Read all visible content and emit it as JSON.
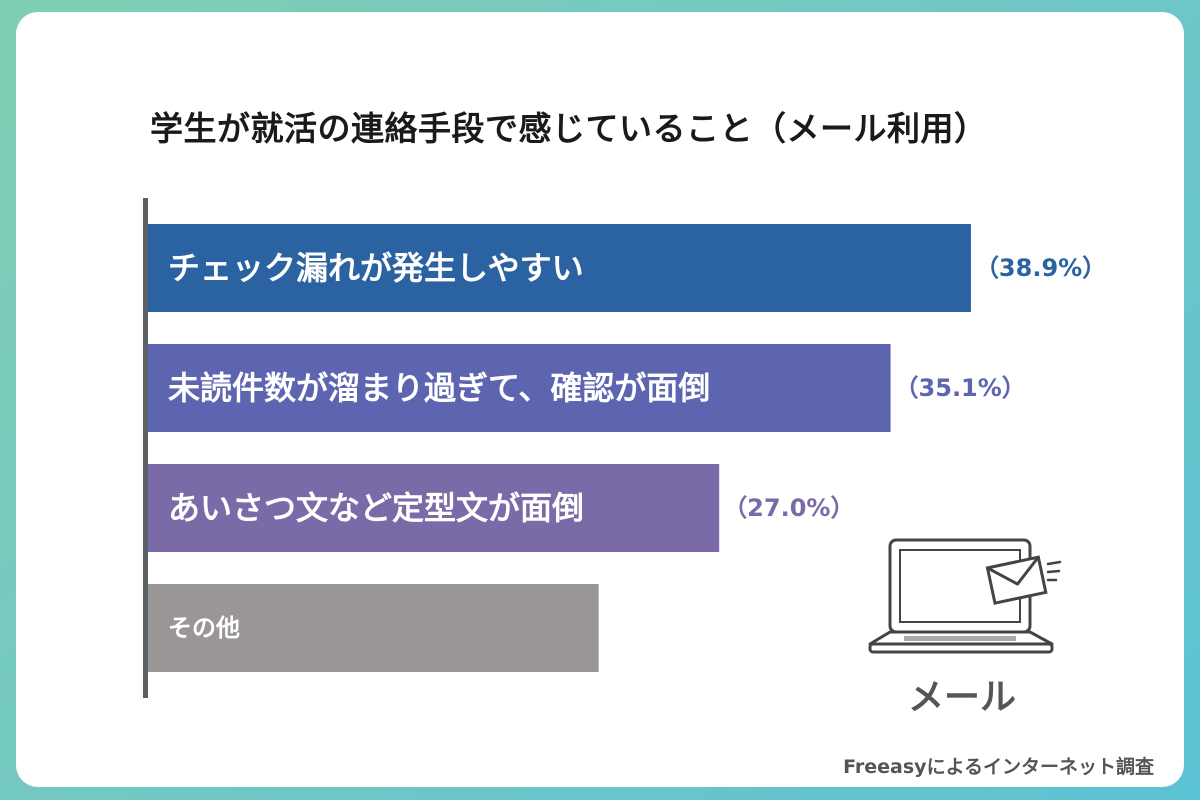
{
  "chart_data": {
    "type": "bar",
    "orientation": "horizontal",
    "title": "学生が就活の連絡手段で感じていること（メール利用）",
    "categories": [
      "チェック漏れが発生しやすい",
      "未読件数が溜まり過ぎて、確認が面倒",
      "あいさつ文など定型文が面倒",
      "その他"
    ],
    "values": [
      38.9,
      35.1,
      27.0,
      21.3
    ],
    "value_labels": [
      "（38.9%）",
      "（35.1%）",
      "（27.0%）",
      ""
    ],
    "colors": [
      "#2b63a2",
      "#5e65b0",
      "#7a6aa7",
      "#9a9696"
    ],
    "label_colors": [
      "#2b63a2",
      "#5e65b0",
      "#7a6aa7",
      "#9a9696"
    ],
    "xlim": [
      0,
      45
    ],
    "grid": false,
    "legend": "none"
  },
  "icon": {
    "name": "laptop-mail-icon",
    "caption": "メール"
  },
  "source": "Freeasyによるインターネット調査"
}
